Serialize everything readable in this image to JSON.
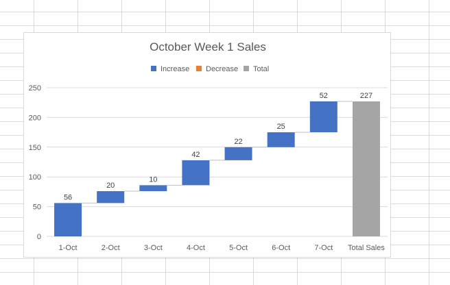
{
  "chart_data": {
    "type": "waterfall",
    "title": "October Week 1 Sales",
    "categories": [
      "1-Oct",
      "2-Oct",
      "3-Oct",
      "4-Oct",
      "5-Oct",
      "6-Oct",
      "7-Oct",
      "Total Sales"
    ],
    "values": [
      56,
      20,
      10,
      42,
      22,
      25,
      52,
      227
    ],
    "kinds": [
      "increase",
      "increase",
      "increase",
      "increase",
      "increase",
      "increase",
      "increase",
      "total"
    ],
    "legend": [
      {
        "label": "Increase",
        "color": "#4472c4"
      },
      {
        "label": "Decrease",
        "color": "#ed7d31"
      },
      {
        "label": "Total",
        "color": "#a5a5a5"
      }
    ],
    "legend_position": "top",
    "ylim": [
      0,
      250
    ],
    "yticks": [
      0,
      50,
      100,
      150,
      200,
      250
    ],
    "grid": true,
    "xlabel": "",
    "ylabel": ""
  }
}
